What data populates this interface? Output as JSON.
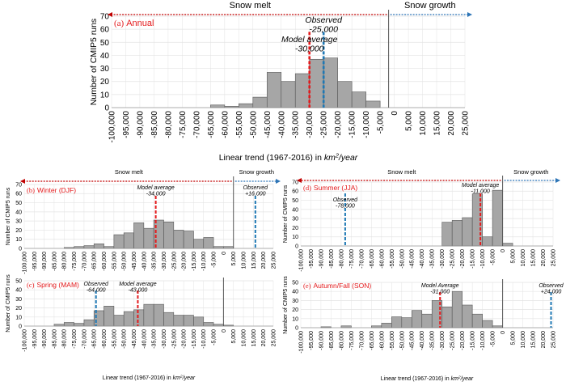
{
  "colors": {
    "bar_fill": "#a6a6a6",
    "bar_stroke": "#555555",
    "model_line": "#e41a1c",
    "observed_line": "#1f78b4",
    "melt_arrow": "#c00000",
    "growth_arrow": "#2e75b6",
    "panel_label": "#e41a1c",
    "grid": "#e3e3e3"
  },
  "chart_data": [
    {
      "id": "a",
      "type": "bar",
      "panel_label": "(a)",
      "season": "Annual",
      "ylabel": "Number of CMIP5 runs",
      "xlabel_prefix": "Linear trend (1967-2016) in ",
      "xlabel_unit_base": "km",
      "xlabel_unit_sup": "2",
      "xlabel_unit_tail": "/year",
      "ylim": [
        0,
        70
      ],
      "yticks": [
        0,
        10,
        20,
        30,
        40,
        50,
        60,
        70
      ],
      "xlim": [
        -100000,
        25000
      ],
      "xticks": [
        "-100,000",
        "-95,000",
        "-90,000",
        "-85,000",
        "-80,000",
        "-75,000",
        "-70,000",
        "-65,000",
        "-60,000",
        "-55,000",
        "-50,000",
        "-45,000",
        "-40,000",
        "-35,000",
        "-30,000",
        "-25,000",
        "-20,000",
        "-15,000",
        "-10,000",
        "-5,000",
        "0",
        "5,000",
        "10,000",
        "15,000",
        "20,000",
        "25,000"
      ],
      "bin_width": 5000,
      "bins": [
        {
          "start": -65000,
          "count": 2
        },
        {
          "start": -60000,
          "count": 1
        },
        {
          "start": -55000,
          "count": 3
        },
        {
          "start": -50000,
          "count": 8
        },
        {
          "start": -45000,
          "count": 27
        },
        {
          "start": -40000,
          "count": 20
        },
        {
          "start": -35000,
          "count": 26
        },
        {
          "start": -30000,
          "count": 37
        },
        {
          "start": -25000,
          "count": 38
        },
        {
          "start": -20000,
          "count": 20
        },
        {
          "start": -15000,
          "count": 12
        },
        {
          "start": -10000,
          "count": 5
        }
      ],
      "divider_x": -2000,
      "model_average": -30000,
      "observed": -25000,
      "model_label": "Model average",
      "model_value_label": "-30,000",
      "observed_label": "Observed",
      "observed_value_label": "-25,000",
      "melt_label": "Snow melt",
      "growth_label": "Snow growth"
    },
    {
      "id": "b",
      "type": "bar",
      "panel_label": "(b)",
      "season": "Winter (DJF)",
      "ylabel": "Number of CMIP5 runs",
      "ylim": [
        0,
        70
      ],
      "yticks": [
        0,
        10,
        20,
        30,
        40,
        50,
        60,
        70
      ],
      "xlim": [
        -100000,
        25000
      ],
      "xticks": [
        "-100,000",
        "-95,000",
        "-90,000",
        "-85,000",
        "-80,000",
        "-75,000",
        "-70,000",
        "-65,000",
        "-60,000",
        "-55,000",
        "-50,000",
        "-45,000",
        "-40,000",
        "-35,000",
        "-30,000",
        "-25,000",
        "-20,000",
        "-15,000",
        "-10,000",
        "-5,000",
        "0",
        "5,000",
        "10,000",
        "15,000",
        "20,000",
        "25,000"
      ],
      "bin_width": 5000,
      "bins": [
        {
          "start": -80000,
          "count": 1
        },
        {
          "start": -75000,
          "count": 2
        },
        {
          "start": -70000,
          "count": 3
        },
        {
          "start": -65000,
          "count": 5
        },
        {
          "start": -60000,
          "count": 2
        },
        {
          "start": -55000,
          "count": 15
        },
        {
          "start": -50000,
          "count": 17
        },
        {
          "start": -45000,
          "count": 28
        },
        {
          "start": -40000,
          "count": 22
        },
        {
          "start": -35000,
          "count": 31
        },
        {
          "start": -30000,
          "count": 29
        },
        {
          "start": -25000,
          "count": 20
        },
        {
          "start": -20000,
          "count": 19
        },
        {
          "start": -15000,
          "count": 10
        },
        {
          "start": -10000,
          "count": 12
        },
        {
          "start": -5000,
          "count": 2
        },
        {
          "start": 0,
          "count": 2
        }
      ],
      "divider_x": 5000,
      "model_average": -34000,
      "observed": 16000,
      "model_label": "Model average",
      "model_value_label": "-34,000",
      "observed_label": "Observed",
      "observed_value_label": "+16,000",
      "melt_label": "Snow melt",
      "growth_label": "Snow growth"
    },
    {
      "id": "d",
      "type": "bar",
      "panel_label": "(d)",
      "season": "Summer (JJA)",
      "ylabel": "Number of CMIP5 runs",
      "ylim": [
        0,
        70
      ],
      "yticks": [
        0,
        10,
        20,
        30,
        40,
        50,
        60,
        70
      ],
      "xlim": [
        -100000,
        25000
      ],
      "xticks": [
        "-100,000",
        "-95,000",
        "-90,000",
        "-85,000",
        "-80,000",
        "-75,000",
        "-70,000",
        "-65,000",
        "-60,000",
        "-55,000",
        "-50,000",
        "-45,000",
        "-40,000",
        "-35,000",
        "-30,000",
        "-25,000",
        "-20,000",
        "-15,000",
        "-10,000",
        "-5,000",
        "0",
        "5,000",
        "10,000",
        "15,000",
        "20,000",
        "25,000"
      ],
      "bin_width": 5000,
      "bins": [
        {
          "start": -30000,
          "count": 26
        },
        {
          "start": -25000,
          "count": 28
        },
        {
          "start": -20000,
          "count": 31
        },
        {
          "start": -15000,
          "count": 57
        },
        {
          "start": -10000,
          "count": 10
        },
        {
          "start": -5000,
          "count": 61
        },
        {
          "start": 0,
          "count": 3
        }
      ],
      "divider_x": 0,
      "model_average": -11000,
      "observed": -78000,
      "model_label": "Model average",
      "model_value_label": "-11,000",
      "observed_label": "Observed",
      "observed_value_label": "-78,000",
      "melt_label": "Snow melt",
      "growth_label": "Snow growth"
    },
    {
      "id": "c",
      "type": "bar",
      "panel_label": "(c)",
      "season": "Spring (MAM)",
      "ylabel": "Number of CMIP5 runs",
      "xlabel_prefix": "Linear trend (1967-2016) in ",
      "xlabel_unit_base": "km",
      "xlabel_unit_sup": "2",
      "xlabel_unit_tail": "/year",
      "ylim": [
        0,
        50
      ],
      "yticks": [
        0,
        10,
        20,
        30,
        40,
        50
      ],
      "xlim": [
        -100000,
        25000
      ],
      "xticks": [
        "-100,000",
        "-95,000",
        "-90,000",
        "-85,000",
        "-80,000",
        "-75,000",
        "-70,000",
        "-65,000",
        "-60,000",
        "-55,000",
        "-50,000",
        "-45,000",
        "-40,000",
        "-35,000",
        "-30,000",
        "-25,000",
        "-20,000",
        "-15,000",
        "-10,000",
        "-5,000",
        "0",
        "5,000",
        "10,000",
        "15,000",
        "20,000",
        "25,000"
      ],
      "bin_width": 5000,
      "bins": [
        {
          "start": -85000,
          "count": 2
        },
        {
          "start": -80000,
          "count": 4
        },
        {
          "start": -75000,
          "count": 3
        },
        {
          "start": -70000,
          "count": 7
        },
        {
          "start": -65000,
          "count": 17
        },
        {
          "start": -60000,
          "count": 22
        },
        {
          "start": -55000,
          "count": 12
        },
        {
          "start": -50000,
          "count": 16
        },
        {
          "start": -45000,
          "count": 18
        },
        {
          "start": -40000,
          "count": 24
        },
        {
          "start": -35000,
          "count": 24
        },
        {
          "start": -30000,
          "count": 15
        },
        {
          "start": -25000,
          "count": 12
        },
        {
          "start": -20000,
          "count": 12
        },
        {
          "start": -15000,
          "count": 10
        },
        {
          "start": -10000,
          "count": 4
        },
        {
          "start": -5000,
          "count": 2
        },
        {
          "start": 0,
          "count": 1
        }
      ],
      "divider_x": 0,
      "model_average": -43000,
      "observed": -64000,
      "model_label": "Model average",
      "model_value_label": "-43,000",
      "observed_label": "Observed",
      "observed_value_label": "-64,000"
    },
    {
      "id": "e",
      "type": "bar",
      "panel_label": "(e)",
      "season": "Autumn/Fall (SON)",
      "ylabel": "Number of CMIP5 runs",
      "xlabel_prefix": "Linear trend (1967-2016) in ",
      "xlabel_unit_base": "km",
      "xlabel_unit_sup": "2",
      "xlabel_unit_tail": "/year",
      "ylim": [
        0,
        50
      ],
      "yticks": [
        0,
        10,
        20,
        30,
        40,
        50
      ],
      "xlim": [
        -100000,
        25000
      ],
      "xticks": [
        "-100,000",
        "-95,000",
        "-90,000",
        "-85,000",
        "-80,000",
        "-75,000",
        "-70,000",
        "-65,000",
        "-60,000",
        "-55,000",
        "-50,000",
        "-45,000",
        "-40,000",
        "-35,000",
        "-30,000",
        "-25,000",
        "-20,000",
        "-15,000",
        "-10,000",
        "-5,000",
        "0",
        "5,000",
        "10,000",
        "15,000",
        "20,000",
        "25,000"
      ],
      "bin_width": 5000,
      "bins": [
        {
          "start": -90000,
          "count": 1
        },
        {
          "start": -80000,
          "count": 2
        },
        {
          "start": -65000,
          "count": 2
        },
        {
          "start": -60000,
          "count": 5
        },
        {
          "start": -55000,
          "count": 12
        },
        {
          "start": -50000,
          "count": 11
        },
        {
          "start": -45000,
          "count": 19
        },
        {
          "start": -40000,
          "count": 15
        },
        {
          "start": -35000,
          "count": 30
        },
        {
          "start": -30000,
          "count": 23
        },
        {
          "start": -25000,
          "count": 40
        },
        {
          "start": -20000,
          "count": 25
        },
        {
          "start": -15000,
          "count": 15
        },
        {
          "start": -10000,
          "count": 8
        },
        {
          "start": -5000,
          "count": 2
        }
      ],
      "divider_x": 0,
      "model_average": -31000,
      "observed": 24000,
      "model_label": "Model Average",
      "model_value_label": "-31,000",
      "observed_label": "Observed",
      "observed_value_label": "+24,000"
    }
  ]
}
